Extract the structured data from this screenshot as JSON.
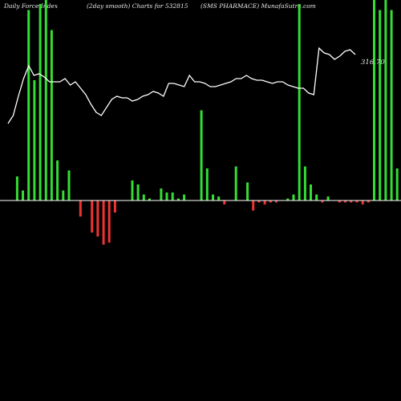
{
  "header": {
    "left": "Daily Force  Index",
    "center": "(2day smooth) Charts for 532815",
    "right": "(SMS PHARMACE) MunafaSutra.com"
  },
  "chart_data": {
    "type": "bar",
    "title": "Daily Force Index (2day smooth) Charts for 532815 (SMS PHARMACE) MunafaSutra.com",
    "xlabel": "",
    "ylabel": "",
    "ylim": [
      -100,
      100
    ],
    "colors": {
      "positive": "#33dd33",
      "negative": "#ee3333",
      "line": "#ffffff",
      "zero_line": "#ffffff"
    },
    "bars": [
      0,
      0,
      12,
      5,
      95,
      60,
      98,
      100,
      85,
      20,
      5,
      15,
      0,
      -8,
      0,
      -16,
      -18,
      -22,
      -21,
      -6,
      0,
      0,
      10,
      8,
      3,
      1,
      0,
      6,
      4,
      4,
      1,
      3,
      0,
      0,
      45,
      16,
      3,
      2,
      -2,
      0,
      17,
      0,
      9,
      -5,
      -1,
      -2,
      -1,
      -1,
      0,
      1,
      3,
      98,
      17,
      8,
      3,
      -1,
      2,
      0,
      -1,
      -1,
      -1,
      -1,
      -2,
      -1,
      100,
      95,
      100,
      95,
      16,
      17,
      10,
      -1
    ],
    "line_series": {
      "name": "",
      "values": [
        48,
        53,
        65,
        76,
        84,
        78,
        79,
        77,
        74,
        74,
        74,
        76,
        72,
        74,
        70,
        66,
        60,
        55,
        53,
        58,
        63,
        65,
        64,
        64,
        62,
        63,
        65,
        66,
        68,
        67,
        65,
        73,
        73,
        72,
        71,
        78,
        74,
        74,
        73,
        71,
        71,
        72,
        73,
        74,
        76,
        76,
        78,
        76,
        75,
        75,
        74,
        73,
        74,
        74,
        72,
        71,
        70,
        70,
        67,
        66,
        95,
        92,
        91,
        88,
        90,
        93,
        94,
        91
      ]
    },
    "last_value_label": "316.70"
  }
}
